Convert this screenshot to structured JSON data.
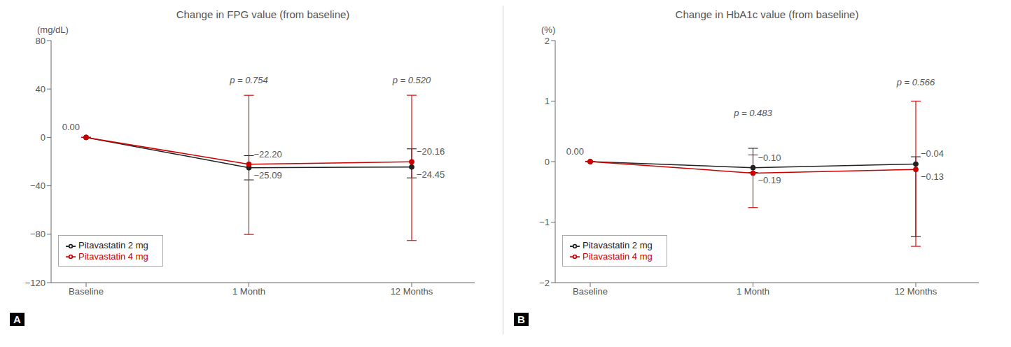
{
  "chart_data": [
    {
      "type": "line",
      "panel_label": "A",
      "title": "Change in FPG value (from baseline)",
      "ylabel": "(mg/dL)",
      "categories": [
        "Baseline",
        "1 Month",
        "12 Months"
      ],
      "ylim": [
        -120,
        80
      ],
      "yticks": [
        {
          "value": -120,
          "label": "−120"
        },
        {
          "value": -80,
          "label": "−80"
        },
        {
          "value": -40,
          "label": "−40"
        },
        0,
        40,
        80
      ],
      "grid": false,
      "legend": "lower left",
      "data_labels": true,
      "series": [
        {
          "name": "Pitavastatin 2 mg",
          "color": "#222222",
          "marker": "o",
          "values": [
            0.0,
            -25.09,
            -24.45
          ],
          "err_lo": [
            0,
            10,
            9
          ],
          "err_hi": [
            0,
            10,
            15
          ],
          "value_labels": [
            "0.00",
            "−25.09",
            "−24.45"
          ]
        },
        {
          "name": "Pitavastatin 4 mg",
          "color": "#cc0000",
          "marker": "o",
          "values": [
            0.0,
            -22.2,
            -20.16
          ],
          "err_lo": [
            0,
            58,
            65
          ],
          "err_hi": [
            0,
            57,
            55
          ],
          "value_labels": [
            null,
            "−22.20",
            "−20.16"
          ]
        }
      ],
      "annotations": [
        {
          "x": "1 Month",
          "y": 43,
          "text": "p = 0.754"
        },
        {
          "x": "12 Months",
          "y": 43,
          "text": "p = 0.520"
        }
      ]
    },
    {
      "type": "line",
      "panel_label": "B",
      "title": "Change in HbA1c value (from baseline)",
      "ylabel": "(%)",
      "categories": [
        "Baseline",
        "1 Month",
        "12 Months"
      ],
      "ylim": [
        -2,
        2
      ],
      "yticks": [
        {
          "value": -2,
          "label": "−2"
        },
        {
          "value": -1,
          "label": "−1"
        },
        0,
        1,
        2
      ],
      "grid": false,
      "legend": "lower left",
      "data_labels": true,
      "series": [
        {
          "name": "Pitavastatin 2 mg",
          "color": "#222222",
          "marker": "o",
          "values": [
            0.0,
            -0.1,
            -0.04
          ],
          "err_lo": [
            0,
            0.08,
            1.2
          ],
          "err_hi": [
            0,
            0.32,
            0.12
          ],
          "value_labels": [
            "0.00",
            "−0.10",
            "−0.04"
          ]
        },
        {
          "name": "Pitavastatin 4 mg",
          "color": "#cc0000",
          "marker": "o",
          "values": [
            0.0,
            -0.19,
            -0.13
          ],
          "err_lo": [
            0,
            0.57,
            1.27
          ],
          "err_hi": [
            0,
            0.3,
            1.13
          ],
          "value_labels": [
            null,
            "−0.19",
            "−0.13"
          ]
        }
      ],
      "annotations": [
        {
          "x": "1 Month",
          "y": 0.72,
          "text": "p = 0.483"
        },
        {
          "x": "12 Months",
          "y": 1.22,
          "text": "p = 0.566"
        }
      ]
    }
  ]
}
